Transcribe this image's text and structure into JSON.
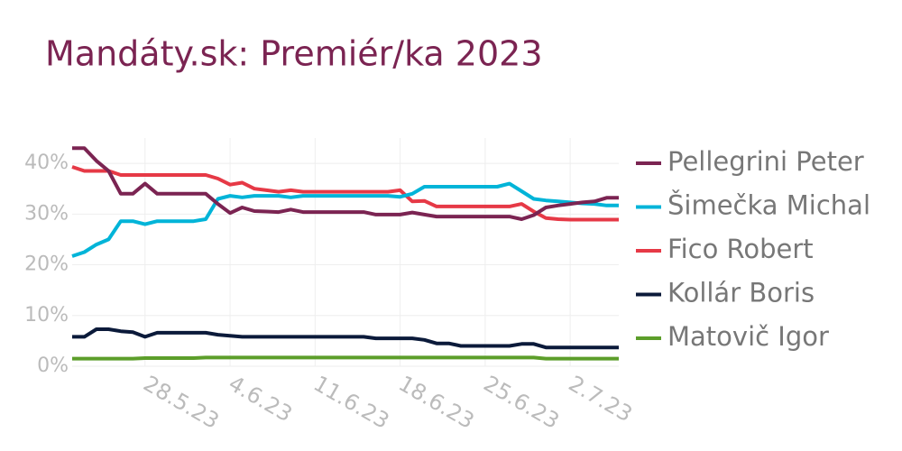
{
  "chart_data": {
    "type": "line",
    "title": "Mandáty.sk: Premiér/ka 2023",
    "x": [
      "2023-05-22",
      "2023-05-23",
      "2023-05-24",
      "2023-05-25",
      "2023-05-26",
      "2023-05-27",
      "2023-05-28",
      "2023-05-29",
      "2023-05-30",
      "2023-05-31",
      "2023-06-01",
      "2023-06-02",
      "2023-06-03",
      "2023-06-04",
      "2023-06-05",
      "2023-06-06",
      "2023-06-07",
      "2023-06-08",
      "2023-06-09",
      "2023-06-10",
      "2023-06-11",
      "2023-06-12",
      "2023-06-13",
      "2023-06-14",
      "2023-06-15",
      "2023-06-16",
      "2023-06-17",
      "2023-06-18",
      "2023-06-19",
      "2023-06-20",
      "2023-06-21",
      "2023-06-22",
      "2023-06-23",
      "2023-06-24",
      "2023-06-25",
      "2023-06-26",
      "2023-06-27",
      "2023-06-28",
      "2023-06-29",
      "2023-06-30",
      "2023-07-01",
      "2023-07-02",
      "2023-07-03",
      "2023-07-04",
      "2023-07-05",
      "2023-07-06"
    ],
    "series": [
      {
        "name": "Pellegrini Peter",
        "color": "#7b2452",
        "values": [
          43,
          43,
          40.5,
          38.5,
          34,
          34,
          36,
          34,
          34,
          34,
          34,
          34,
          32,
          30.2,
          31.3,
          30.6,
          30.5,
          30.4,
          30.9,
          30.4,
          30.4,
          30.4,
          30.4,
          30.4,
          30.4,
          29.9,
          29.9,
          29.9,
          30.3,
          29.9,
          29.5,
          29.5,
          29.5,
          29.5,
          29.5,
          29.5,
          29.5,
          29,
          29.8,
          31.3,
          31.7,
          32,
          32.3,
          32.5,
          33.2,
          33.2
        ]
      },
      {
        "name": "Šimečka Michal",
        "color": "#00b4d8",
        "values": [
          21.7,
          22.5,
          24,
          25,
          28.6,
          28.6,
          28,
          28.6,
          28.6,
          28.6,
          28.6,
          29,
          33,
          33.6,
          33.3,
          33.6,
          33.6,
          33.6,
          33.3,
          33.6,
          33.6,
          33.6,
          33.6,
          33.6,
          33.6,
          33.6,
          33.6,
          33.4,
          34,
          35.4,
          35.4,
          35.4,
          35.4,
          35.4,
          35.4,
          35.4,
          36,
          34.5,
          33,
          32.7,
          32.5,
          32.3,
          32.1,
          32,
          31.7,
          31.7
        ]
      },
      {
        "name": "Fico Robert",
        "color": "#e63946",
        "values": [
          39.3,
          38.5,
          38.5,
          38.5,
          37.7,
          37.7,
          37.7,
          37.7,
          37.7,
          37.7,
          37.7,
          37.7,
          37,
          35.8,
          36.2,
          35,
          34.7,
          34.4,
          34.7,
          34.4,
          34.4,
          34.4,
          34.4,
          34.4,
          34.4,
          34.4,
          34.4,
          34.7,
          32.5,
          32.6,
          31.5,
          31.5,
          31.5,
          31.5,
          31.5,
          31.5,
          31.5,
          32,
          30.5,
          29.2,
          29,
          28.9,
          28.9,
          28.9,
          28.9,
          28.9
        ]
      },
      {
        "name": "Kollár Boris",
        "color": "#0b1a3a",
        "values": [
          5.8,
          5.8,
          7.3,
          7.3,
          6.9,
          6.7,
          5.8,
          6.6,
          6.6,
          6.6,
          6.6,
          6.6,
          6.2,
          6,
          5.8,
          5.8,
          5.8,
          5.8,
          5.8,
          5.8,
          5.8,
          5.8,
          5.8,
          5.8,
          5.8,
          5.5,
          5.5,
          5.5,
          5.5,
          5.2,
          4.5,
          4.5,
          4,
          4,
          4,
          4,
          4,
          4.4,
          4.4,
          3.7,
          3.7,
          3.7,
          3.7,
          3.7,
          3.7,
          3.7
        ]
      },
      {
        "name": "Matovič Igor",
        "color": "#5c9e2a",
        "values": [
          1.5,
          1.5,
          1.5,
          1.5,
          1.5,
          1.5,
          1.6,
          1.6,
          1.6,
          1.6,
          1.6,
          1.7,
          1.7,
          1.7,
          1.7,
          1.7,
          1.7,
          1.7,
          1.7,
          1.7,
          1.7,
          1.7,
          1.7,
          1.7,
          1.7,
          1.7,
          1.7,
          1.7,
          1.7,
          1.7,
          1.7,
          1.7,
          1.7,
          1.7,
          1.7,
          1.7,
          1.7,
          1.7,
          1.7,
          1.5,
          1.5,
          1.5,
          1.5,
          1.5,
          1.5,
          1.5
        ]
      }
    ],
    "xlim": [
      "2023-05-22",
      "2023-07-06"
    ],
    "xticks": [
      {
        "value": "2023-05-28",
        "label": "28.5.23"
      },
      {
        "value": "2023-06-04",
        "label": "4.6.23"
      },
      {
        "value": "2023-06-11",
        "label": "11.6.23"
      },
      {
        "value": "2023-06-18",
        "label": "18.6.23"
      },
      {
        "value": "2023-06-25",
        "label": "25.6.23"
      },
      {
        "value": "2023-07-02",
        "label": "2.7.23"
      }
    ],
    "ylim": [
      0,
      45
    ],
    "yticks": [
      {
        "value": 0,
        "label": "0%"
      },
      {
        "value": 10,
        "label": "10%"
      },
      {
        "value": 20,
        "label": "20%"
      },
      {
        "value": 30,
        "label": "30%"
      },
      {
        "value": 40,
        "label": "40%"
      }
    ],
    "grid": true,
    "legend": "right"
  }
}
